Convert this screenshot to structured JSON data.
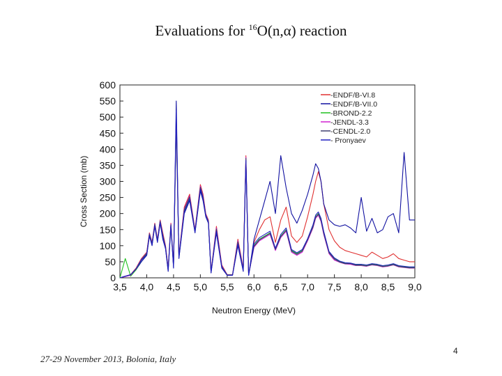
{
  "slide": {
    "title_prefix": "Evaluations for ",
    "title_super": "16",
    "title_suffix": "O(n,α) reaction",
    "footer": "27-29 November 2013, Bolonia, Italy",
    "page_number": "4"
  },
  "chart_data": {
    "type": "line",
    "xlabel": "Neutron Energy (MeV)",
    "ylabel": "Cross Section (mb)",
    "xlim": [
      3.5,
      9.0
    ],
    "ylim": [
      0,
      600
    ],
    "xticks": [
      "3,5",
      "4,0",
      "4,5",
      "5,0",
      "5,5",
      "6,0",
      "6,5",
      "7,0",
      "7,5",
      "8,0",
      "8,5",
      "9,0"
    ],
    "yticks": [
      "0",
      "50",
      "100",
      "150",
      "200",
      "250",
      "300",
      "350",
      "400",
      "450",
      "500",
      "550",
      "600"
    ],
    "legend_position": "top-right",
    "series": [
      {
        "name": "-ENDF/B-VI.8",
        "color": "#e03030",
        "x": [
          3.5,
          3.6,
          3.7,
          3.8,
          3.9,
          4.0,
          4.05,
          4.1,
          4.15,
          4.2,
          4.25,
          4.3,
          4.35,
          4.4,
          4.45,
          4.5,
          4.55,
          4.6,
          4.7,
          4.8,
          4.9,
          5.0,
          5.05,
          5.1,
          5.15,
          5.2,
          5.3,
          5.4,
          5.5,
          5.6,
          5.7,
          5.8,
          5.85,
          5.9,
          6.0,
          6.1,
          6.2,
          6.3,
          6.4,
          6.5,
          6.6,
          6.7,
          6.8,
          6.9,
          7.0,
          7.1,
          7.15,
          7.2,
          7.25,
          7.3,
          7.4,
          7.5,
          7.6,
          7.7,
          7.8,
          7.9,
          8.0,
          8.1,
          8.2,
          8.3,
          8.4,
          8.5,
          8.6,
          8.7,
          8.8,
          8.9,
          9.0
        ],
        "y": [
          0,
          5,
          10,
          30,
          60,
          80,
          140,
          110,
          170,
          120,
          180,
          140,
          100,
          30,
          170,
          40,
          500,
          70,
          220,
          260,
          150,
          290,
          260,
          200,
          180,
          20,
          160,
          40,
          10,
          10,
          120,
          30,
          380,
          10,
          110,
          150,
          180,
          190,
          110,
          180,
          220,
          130,
          110,
          130,
          190,
          260,
          300,
          330,
          300,
          230,
          150,
          115,
          95,
          85,
          80,
          75,
          70,
          65,
          80,
          70,
          60,
          65,
          75,
          60,
          55,
          50,
          50
        ]
      },
      {
        "name": "-ENDF/B-VII.0",
        "color": "#1010a0",
        "x": [
          3.5,
          3.6,
          3.7,
          3.8,
          3.9,
          4.0,
          4.05,
          4.1,
          4.15,
          4.2,
          4.25,
          4.3,
          4.35,
          4.4,
          4.45,
          4.5,
          4.55,
          4.6,
          4.7,
          4.8,
          4.9,
          5.0,
          5.05,
          5.1,
          5.15,
          5.2,
          5.3,
          5.4,
          5.5,
          5.6,
          5.7,
          5.8,
          5.85,
          5.9,
          6.0,
          6.1,
          6.2,
          6.3,
          6.4,
          6.5,
          6.6,
          6.7,
          6.8,
          6.9,
          7.0,
          7.1,
          7.15,
          7.2,
          7.25,
          7.3,
          7.4,
          7.5,
          7.6,
          7.7,
          7.8,
          7.9,
          8.0,
          8.1,
          8.2,
          8.3,
          8.4,
          8.5,
          8.6,
          8.7,
          8.8,
          8.9,
          9.0
        ],
        "y": [
          0,
          5,
          8,
          25,
          50,
          70,
          130,
          100,
          160,
          110,
          170,
          120,
          90,
          20,
          160,
          30,
          550,
          60,
          200,
          240,
          140,
          270,
          240,
          190,
          170,
          15,
          140,
          30,
          8,
          8,
          100,
          20,
          360,
          8,
          120,
          180,
          240,
          300,
          200,
          380,
          280,
          200,
          170,
          210,
          260,
          320,
          355,
          340,
          300,
          230,
          180,
          165,
          160,
          165,
          155,
          140,
          250,
          145,
          185,
          140,
          150,
          190,
          200,
          140,
          390,
          180,
          180
        ]
      },
      {
        "name": "-BROND-2.2",
        "color": "#20c020",
        "x": [
          3.5,
          3.6,
          3.7,
          3.8,
          3.9,
          4.0,
          4.05,
          4.1,
          4.15,
          4.2,
          4.25,
          4.3,
          4.35,
          4.4,
          4.45,
          4.5,
          4.55,
          4.6,
          4.7,
          4.8,
          4.9,
          5.0,
          5.05,
          5.1,
          5.15,
          5.2,
          5.3,
          5.4,
          5.5,
          5.6,
          5.7,
          5.8,
          5.85,
          5.9,
          6.0,
          6.1,
          6.2,
          6.3,
          6.4,
          6.5,
          6.6,
          6.7,
          6.8,
          6.9,
          7.0,
          7.1,
          7.15,
          7.2,
          7.25,
          7.3,
          7.4,
          7.5,
          7.6,
          7.7,
          7.8,
          7.9,
          8.0,
          8.1,
          8.2,
          8.3,
          8.4,
          8.5,
          8.6,
          8.7,
          8.8,
          8.9,
          9.0
        ],
        "y": [
          0,
          60,
          5,
          25,
          55,
          75,
          135,
          105,
          165,
          115,
          175,
          130,
          95,
          25,
          165,
          35,
          480,
          65,
          210,
          250,
          145,
          280,
          250,
          195,
          175,
          18,
          150,
          35,
          9,
          9,
          110,
          25,
          370,
          9,
          100,
          120,
          130,
          140,
          90,
          130,
          150,
          85,
          75,
          85,
          120,
          160,
          190,
          200,
          180,
          140,
          80,
          60,
          50,
          45,
          45,
          40,
          40,
          38,
          42,
          40,
          36,
          38,
          42,
          36,
          34,
          32,
          32
        ]
      },
      {
        "name": "-JENDL-3.3",
        "color": "#d020d0",
        "x": [
          3.5,
          3.6,
          3.7,
          3.8,
          3.9,
          4.0,
          4.05,
          4.1,
          4.15,
          4.2,
          4.25,
          4.3,
          4.35,
          4.4,
          4.45,
          4.5,
          4.55,
          4.6,
          4.7,
          4.8,
          4.9,
          5.0,
          5.05,
          5.1,
          5.15,
          5.2,
          5.3,
          5.4,
          5.5,
          5.6,
          5.7,
          5.8,
          5.85,
          5.9,
          6.0,
          6.1,
          6.2,
          6.3,
          6.4,
          6.5,
          6.6,
          6.7,
          6.8,
          6.9,
          7.0,
          7.1,
          7.15,
          7.2,
          7.25,
          7.3,
          7.4,
          7.5,
          7.6,
          7.7,
          7.8,
          7.9,
          8.0,
          8.1,
          8.2,
          8.3,
          8.4,
          8.5,
          8.6,
          8.7,
          8.8,
          8.9,
          9.0
        ],
        "y": [
          0,
          4,
          8,
          28,
          58,
          78,
          138,
          108,
          168,
          118,
          178,
          135,
          98,
          28,
          168,
          38,
          490,
          68,
          215,
          255,
          148,
          285,
          255,
          198,
          178,
          19,
          155,
          38,
          9,
          9,
          115,
          28,
          375,
          9,
          95,
          115,
          125,
          135,
          85,
          125,
          145,
          80,
          70,
          80,
          115,
          155,
          185,
          195,
          175,
          135,
          75,
          55,
          48,
          43,
          42,
          38,
          38,
          36,
          40,
          38,
          34,
          36,
          40,
          34,
          32,
          30,
          30
        ]
      },
      {
        "name": "-CENDL-2.0",
        "color": "#404070",
        "x": [
          3.5,
          3.6,
          3.7,
          3.8,
          3.9,
          4.0,
          4.05,
          4.1,
          4.15,
          4.2,
          4.25,
          4.3,
          4.35,
          4.4,
          4.45,
          4.5,
          4.55,
          4.6,
          4.7,
          4.8,
          4.9,
          5.0,
          5.05,
          5.1,
          5.15,
          5.2,
          5.3,
          5.4,
          5.5,
          5.6,
          5.7,
          5.8,
          5.85,
          5.9,
          6.0,
          6.1,
          6.2,
          6.3,
          6.4,
          6.5,
          6.6,
          6.7,
          6.8,
          6.9,
          7.0,
          7.1,
          7.15,
          7.2,
          7.25,
          7.3,
          7.4,
          7.5,
          7.6,
          7.7,
          7.8,
          7.9,
          8.0,
          8.1,
          8.2,
          8.3,
          8.4,
          8.5,
          8.6,
          8.7,
          8.8,
          8.9,
          9.0
        ],
        "y": [
          0,
          5,
          9,
          27,
          57,
          77,
          137,
          107,
          167,
          117,
          177,
          133,
          96,
          27,
          166,
          37,
          495,
          66,
          212,
          252,
          146,
          282,
          252,
          196,
          176,
          18,
          152,
          36,
          9,
          9,
          112,
          26,
          372,
          9,
          98,
          118,
          128,
          138,
          88,
          128,
          148,
          83,
          73,
          83,
          118,
          158,
          188,
          198,
          178,
          138,
          78,
          58,
          49,
          44,
          44,
          39,
          39,
          37,
          41,
          39,
          35,
          37,
          41,
          35,
          33,
          31,
          31
        ]
      },
      {
        "name": "- Pronyaev",
        "color": "#2020c0",
        "x": [
          3.5,
          3.6,
          3.7,
          3.8,
          3.9,
          4.0,
          4.05,
          4.1,
          4.15,
          4.2,
          4.25,
          4.3,
          4.35,
          4.4,
          4.45,
          4.5,
          4.55,
          4.6,
          4.7,
          4.8,
          4.9,
          5.0,
          5.05,
          5.1,
          5.15,
          5.2,
          5.3,
          5.4,
          5.5,
          5.6,
          5.7,
          5.8,
          5.85,
          5.9,
          6.0,
          6.1,
          6.2,
          6.3,
          6.4,
          6.5,
          6.6,
          6.7,
          6.8,
          6.9,
          7.0,
          7.1,
          7.15,
          7.2,
          7.25,
          7.3,
          7.4,
          7.5,
          7.6,
          7.7,
          7.8,
          7.9,
          8.0,
          8.1,
          8.2,
          8.3,
          8.4,
          8.5,
          8.6,
          8.7,
          8.8,
          8.9,
          9.0
        ],
        "y": [
          0,
          5,
          10,
          28,
          55,
          72,
          132,
          102,
          162,
          112,
          172,
          125,
          92,
          22,
          162,
          32,
          520,
          62,
          205,
          245,
          142,
          275,
          245,
          192,
          172,
          16,
          145,
          32,
          8,
          8,
          105,
          22,
          365,
          8,
          105,
          125,
          135,
          145,
          92,
          135,
          155,
          88,
          78,
          88,
          122,
          165,
          195,
          205,
          185,
          145,
          82,
          62,
          52,
          47,
          46,
          42,
          42,
          40,
          44,
          42,
          38,
          40,
          44,
          38,
          36,
          34,
          34
        ]
      }
    ]
  }
}
